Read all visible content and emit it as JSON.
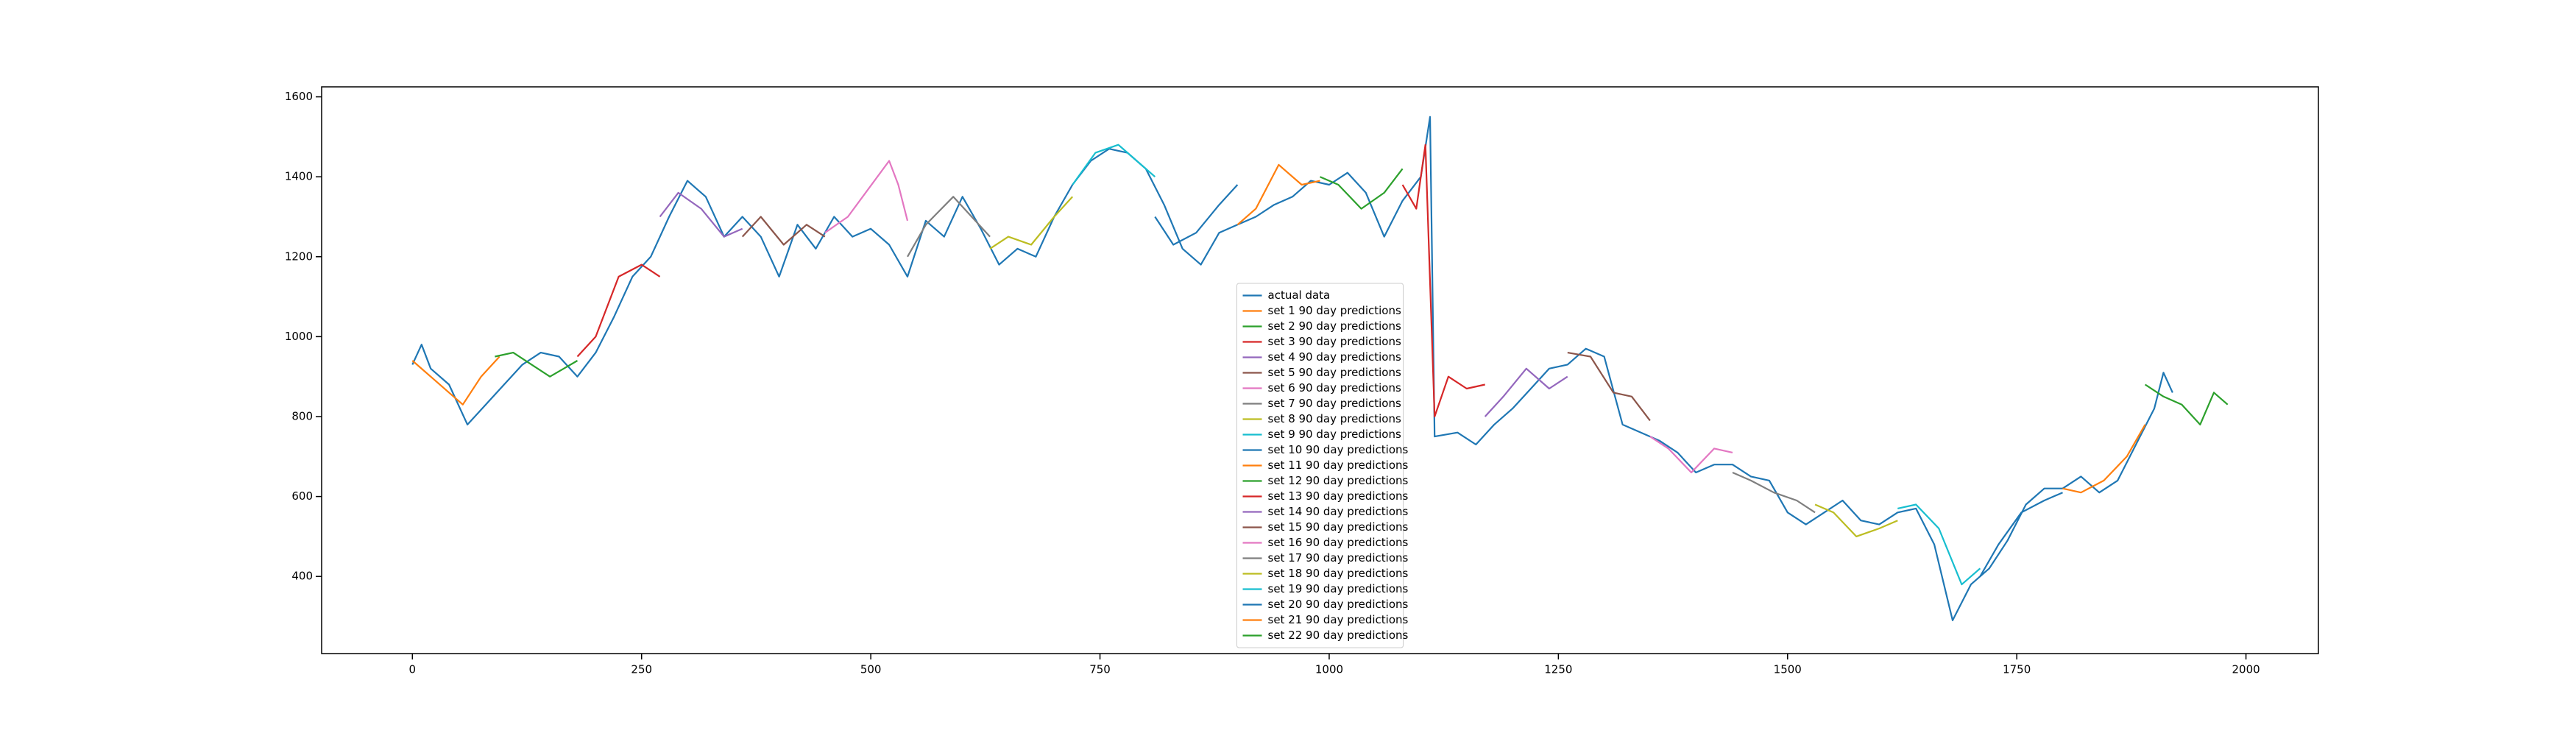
{
  "chart_data": {
    "type": "line",
    "xlim": [
      -99,
      2079
    ],
    "ylim": [
      207,
      1625
    ],
    "xticks": [
      0,
      250,
      500,
      750,
      1000,
      1250,
      1500,
      1750,
      2000
    ],
    "yticks": [
      400,
      600,
      800,
      1000,
      1200,
      1400,
      1600
    ],
    "grid": false,
    "legend_loc": "lower center",
    "series": [
      {
        "name": "actual data",
        "color": "#1f77b4",
        "x": [
          0,
          10,
          20,
          40,
          60,
          80,
          100,
          120,
          140,
          160,
          180,
          200,
          220,
          240,
          260,
          280,
          300,
          320,
          340,
          360,
          380,
          400,
          420,
          440,
          460,
          480,
          500,
          520,
          540,
          560,
          580,
          600,
          620,
          640,
          660,
          680,
          700,
          720,
          740,
          760,
          780,
          800,
          820,
          840,
          860,
          880,
          900,
          920,
          940,
          960,
          980,
          1000,
          1020,
          1040,
          1060,
          1080,
          1100,
          1110,
          1115,
          1140,
          1160,
          1180,
          1200,
          1220,
          1240,
          1260,
          1280,
          1300,
          1320,
          1340,
          1360,
          1380,
          1400,
          1420,
          1440,
          1460,
          1480,
          1500,
          1520,
          1540,
          1560,
          1580,
          1600,
          1620,
          1640,
          1660,
          1680,
          1700,
          1720,
          1740,
          1760,
          1780,
          1800,
          1820,
          1840,
          1860,
          1880,
          1900,
          1910,
          1920
        ],
        "values": [
          930,
          980,
          920,
          880,
          780,
          830,
          880,
          930,
          960,
          950,
          900,
          960,
          1050,
          1150,
          1200,
          1300,
          1390,
          1350,
          1250,
          1300,
          1250,
          1150,
          1280,
          1220,
          1300,
          1250,
          1270,
          1230,
          1150,
          1290,
          1250,
          1350,
          1270,
          1180,
          1220,
          1200,
          1300,
          1380,
          1440,
          1470,
          1460,
          1420,
          1330,
          1220,
          1180,
          1260,
          1280,
          1300,
          1330,
          1350,
          1390,
          1380,
          1410,
          1360,
          1250,
          1340,
          1400,
          1550,
          750,
          760,
          730,
          780,
          820,
          870,
          920,
          930,
          970,
          950,
          780,
          760,
          740,
          710,
          660,
          680,
          680,
          650,
          640,
          560,
          530,
          560,
          590,
          540,
          530,
          560,
          570,
          480,
          290,
          380,
          420,
          490,
          580,
          620,
          620,
          650,
          610,
          640,
          730,
          820,
          910,
          860
        ]
      },
      {
        "name": "set 1 90 day predictions",
        "color": "#ff7f0e",
        "x": [
          0,
          20,
          40,
          55,
          75,
          95
        ],
        "values": [
          940,
          900,
          860,
          830,
          900,
          950
        ]
      },
      {
        "name": "set 2 90 day predictions",
        "color": "#2ca02c",
        "x": [
          90,
          110,
          130,
          150,
          180
        ],
        "values": [
          950,
          960,
          930,
          900,
          940
        ]
      },
      {
        "name": "set 3 90 day predictions",
        "color": "#d62728",
        "x": [
          180,
          200,
          225,
          250,
          270
        ],
        "values": [
          950,
          1000,
          1150,
          1180,
          1150
        ]
      },
      {
        "name": "set 4 90 day predictions",
        "color": "#9467bd",
        "x": [
          270,
          290,
          315,
          340,
          360
        ],
        "values": [
          1300,
          1360,
          1320,
          1250,
          1270
        ]
      },
      {
        "name": "set 5 90 day predictions",
        "color": "#8c564b",
        "x": [
          360,
          380,
          405,
          430,
          450
        ],
        "values": [
          1250,
          1300,
          1230,
          1280,
          1250
        ]
      },
      {
        "name": "set 6 90 day predictions",
        "color": "#e377c2",
        "x": [
          450,
          475,
          520,
          530,
          540
        ],
        "values": [
          1260,
          1300,
          1440,
          1380,
          1290
        ]
      },
      {
        "name": "set 7 90 day predictions",
        "color": "#7f7f7f",
        "x": [
          540,
          560,
          590,
          610,
          630
        ],
        "values": [
          1200,
          1280,
          1350,
          1300,
          1250
        ]
      },
      {
        "name": "set 8 90 day predictions",
        "color": "#bcbd22",
        "x": [
          630,
          650,
          675,
          700,
          720
        ],
        "values": [
          1220,
          1250,
          1230,
          1300,
          1350
        ]
      },
      {
        "name": "set 9 90 day predictions",
        "color": "#17becf",
        "x": [
          720,
          745,
          770,
          790,
          810
        ],
        "values": [
          1380,
          1460,
          1480,
          1440,
          1400
        ]
      },
      {
        "name": "set 10 90 day predictions",
        "color": "#1f77b4",
        "x": [
          810,
          830,
          855,
          880,
          900
        ],
        "values": [
          1300,
          1230,
          1260,
          1330,
          1380
        ]
      },
      {
        "name": "set 11 90 day predictions",
        "color": "#ff7f0e",
        "x": [
          900,
          920,
          945,
          970,
          990
        ],
        "values": [
          1280,
          1320,
          1430,
          1380,
          1390
        ]
      },
      {
        "name": "set 12 90 day predictions",
        "color": "#2ca02c",
        "x": [
          990,
          1010,
          1035,
          1060,
          1080
        ],
        "values": [
          1400,
          1380,
          1320,
          1360,
          1420
        ]
      },
      {
        "name": "set 13 90 day predictions",
        "color": "#d62728",
        "x": [
          1080,
          1095,
          1105,
          1115,
          1130,
          1150,
          1170
        ],
        "values": [
          1380,
          1320,
          1480,
          800,
          900,
          870,
          880
        ]
      },
      {
        "name": "set 14 90 day predictions",
        "color": "#9467bd",
        "x": [
          1170,
          1190,
          1215,
          1240,
          1260
        ],
        "values": [
          800,
          850,
          920,
          870,
          900
        ]
      },
      {
        "name": "set 15 90 day predictions",
        "color": "#8c564b",
        "x": [
          1260,
          1285,
          1310,
          1330,
          1350
        ],
        "values": [
          960,
          950,
          860,
          850,
          790
        ]
      },
      {
        "name": "set 16 90 day predictions",
        "color": "#e377c2",
        "x": [
          1350,
          1370,
          1395,
          1420,
          1440
        ],
        "values": [
          750,
          720,
          660,
          720,
          710
        ]
      },
      {
        "name": "set 17 90 day predictions",
        "color": "#7f7f7f",
        "x": [
          1440,
          1460,
          1485,
          1510,
          1530
        ],
        "values": [
          660,
          640,
          610,
          590,
          560
        ]
      },
      {
        "name": "set 18 90 day predictions",
        "color": "#bcbd22",
        "x": [
          1530,
          1550,
          1575,
          1600,
          1620
        ],
        "values": [
          580,
          560,
          500,
          520,
          540
        ]
      },
      {
        "name": "set 19 90 day predictions",
        "color": "#17becf",
        "x": [
          1620,
          1640,
          1665,
          1690,
          1710
        ],
        "values": [
          570,
          580,
          520,
          380,
          420
        ]
      },
      {
        "name": "set 20 90 day predictions",
        "color": "#1f77b4",
        "x": [
          1710,
          1730,
          1755,
          1780,
          1800
        ],
        "values": [
          400,
          480,
          560,
          590,
          610
        ]
      },
      {
        "name": "set 21 90 day predictions",
        "color": "#ff7f0e",
        "x": [
          1800,
          1820,
          1845,
          1870,
          1890
        ],
        "values": [
          620,
          610,
          640,
          700,
          780
        ]
      },
      {
        "name": "set 22 90 day predictions",
        "color": "#2ca02c",
        "x": [
          1890,
          1910,
          1930,
          1950,
          1965,
          1980
        ],
        "values": [
          880,
          850,
          830,
          780,
          860,
          830
        ]
      }
    ]
  }
}
